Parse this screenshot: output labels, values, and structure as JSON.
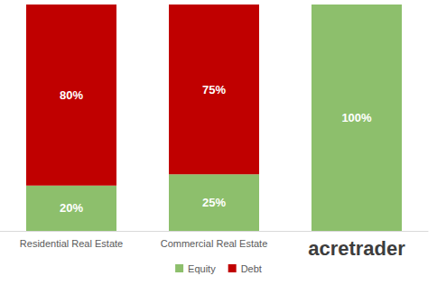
{
  "chart_data": {
    "type": "bar",
    "categories": [
      "Residential Real Estate",
      "Commercial Real Estate",
      "acretrader"
    ],
    "series": [
      {
        "name": "Equity",
        "color": "#8dbf6c",
        "values": [
          20,
          25,
          100
        ],
        "value_labels": [
          "20%",
          "25%",
          "100%"
        ]
      },
      {
        "name": "Debt",
        "color": "#c00000",
        "values": [
          80,
          75,
          null
        ],
        "value_labels": [
          "80%",
          "75%",
          null
        ]
      }
    ],
    "ylim": [
      0,
      100
    ],
    "stacked": true,
    "data_labels": true,
    "grid": false,
    "legend": "bottom",
    "tick_labels": "x"
  }
}
